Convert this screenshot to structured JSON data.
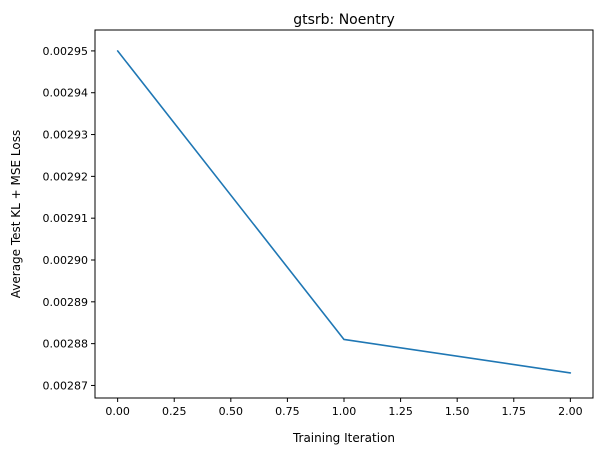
{
  "chart_data": {
    "type": "line",
    "title": "gtsrb: Noentry",
    "xlabel": "Training Iteration",
    "ylabel": "Average Test KL + MSE Loss",
    "xlim": [
      -0.1,
      2.1
    ],
    "ylim": [
      0.002867,
      0.002955
    ],
    "xticks": [
      0.0,
      0.25,
      0.5,
      0.75,
      1.0,
      1.25,
      1.5,
      1.75,
      2.0
    ],
    "xtick_labels": [
      "0.00",
      "0.25",
      "0.50",
      "0.75",
      "1.00",
      "1.25",
      "1.50",
      "1.75",
      "2.00"
    ],
    "yticks": [
      0.00287,
      0.00288,
      0.00289,
      0.0029,
      0.00291,
      0.00292,
      0.00293,
      0.00294,
      0.00295
    ],
    "ytick_labels": [
      "0.00287",
      "0.00288",
      "0.00289",
      "0.00290",
      "0.00291",
      "0.00292",
      "0.00293",
      "0.00294",
      "0.00295"
    ],
    "grid": false,
    "series": [
      {
        "color": "#1f77b4",
        "x": [
          0,
          1,
          2
        ],
        "y": [
          0.00295,
          0.002881,
          0.002873
        ]
      }
    ]
  }
}
